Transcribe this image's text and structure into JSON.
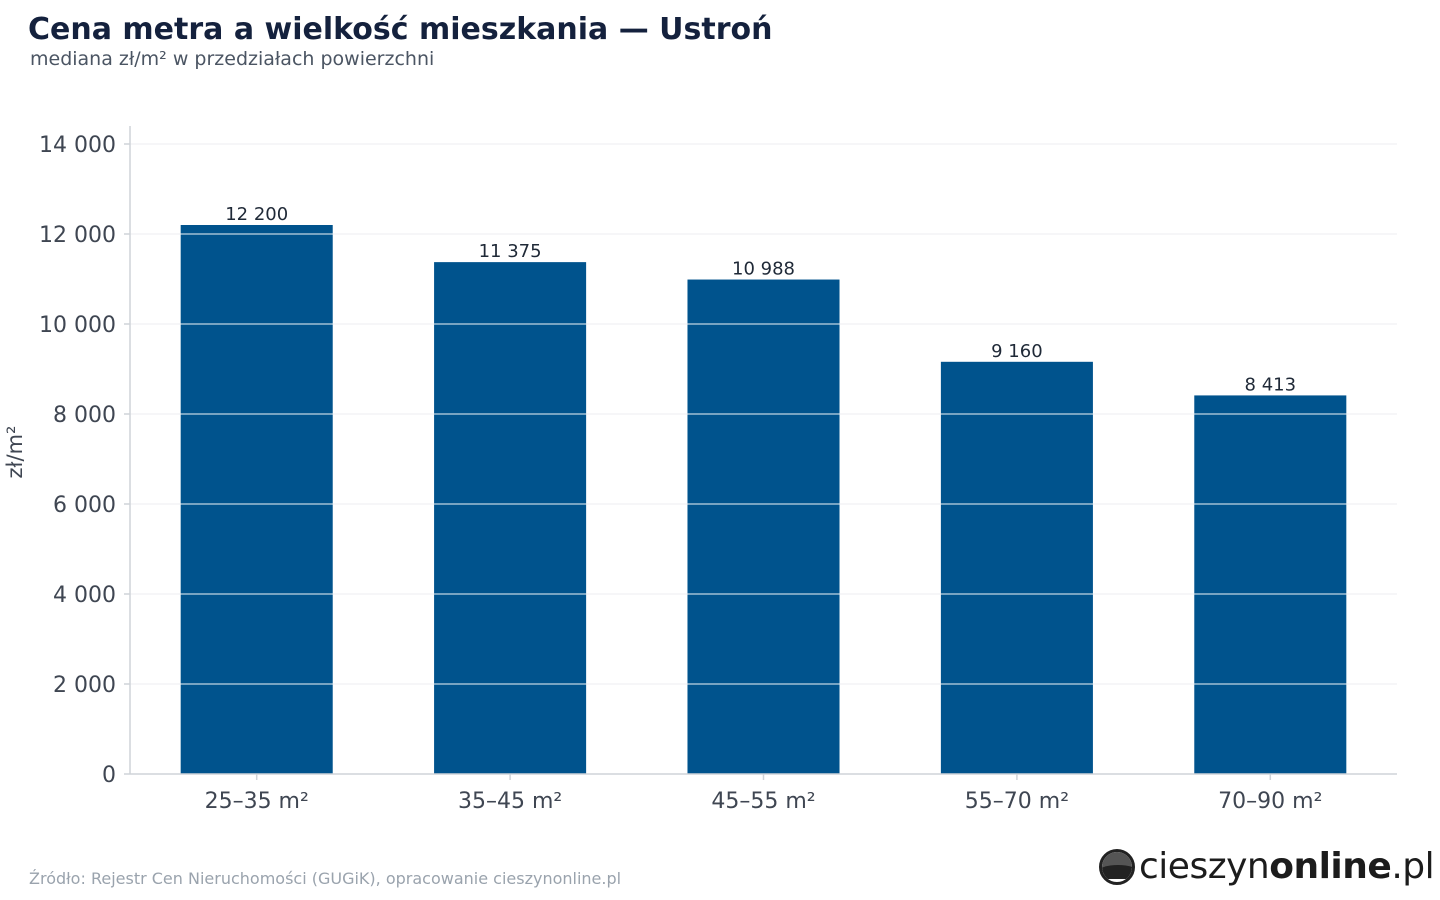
{
  "header": {
    "title": "Cena metra a wielkość mieszkania — Ustroń",
    "subtitle": "mediana zł/m² w przedziałach powierzchni"
  },
  "footer": {
    "source": "Źródło: Rejestr Cen Nieruchomości (GUGiK), opracowanie cieszynonline.pl",
    "brand_prefix": "cieszyn",
    "brand_bold": "online",
    "brand_suffix": ".pl"
  },
  "icons": {
    "brand_logo": "cieszyn-landscape-badge-icon"
  },
  "colors": {
    "bar": "#00538d",
    "grid": "#e3e6ea",
    "axis": "#cfd3d8",
    "tick_text": "#3f4652"
  },
  "chart_data": {
    "type": "bar",
    "title": "Cena metra a wielkość mieszkania — Ustroń",
    "subtitle": "mediana zł/m² w przedziałach powierzchni",
    "categories": [
      "25–35 m²",
      "35–45 m²",
      "45–55 m²",
      "55–70 m²",
      "70–90 m²"
    ],
    "values": [
      12200,
      11375,
      10988,
      9160,
      8413
    ],
    "value_labels": [
      "12 200",
      "11 375",
      "10 988",
      "9 160",
      "8 413"
    ],
    "xlabel": "",
    "ylabel": "zł/m²",
    "ylim": [
      0,
      14000
    ],
    "yticks": [
      0,
      2000,
      4000,
      6000,
      8000,
      10000,
      12000,
      14000
    ],
    "ytick_labels": [
      "0",
      "2 000",
      "4 000",
      "6 000",
      "8 000",
      "10 000",
      "12 000",
      "14 000"
    ],
    "grid": true,
    "legend": "none"
  }
}
